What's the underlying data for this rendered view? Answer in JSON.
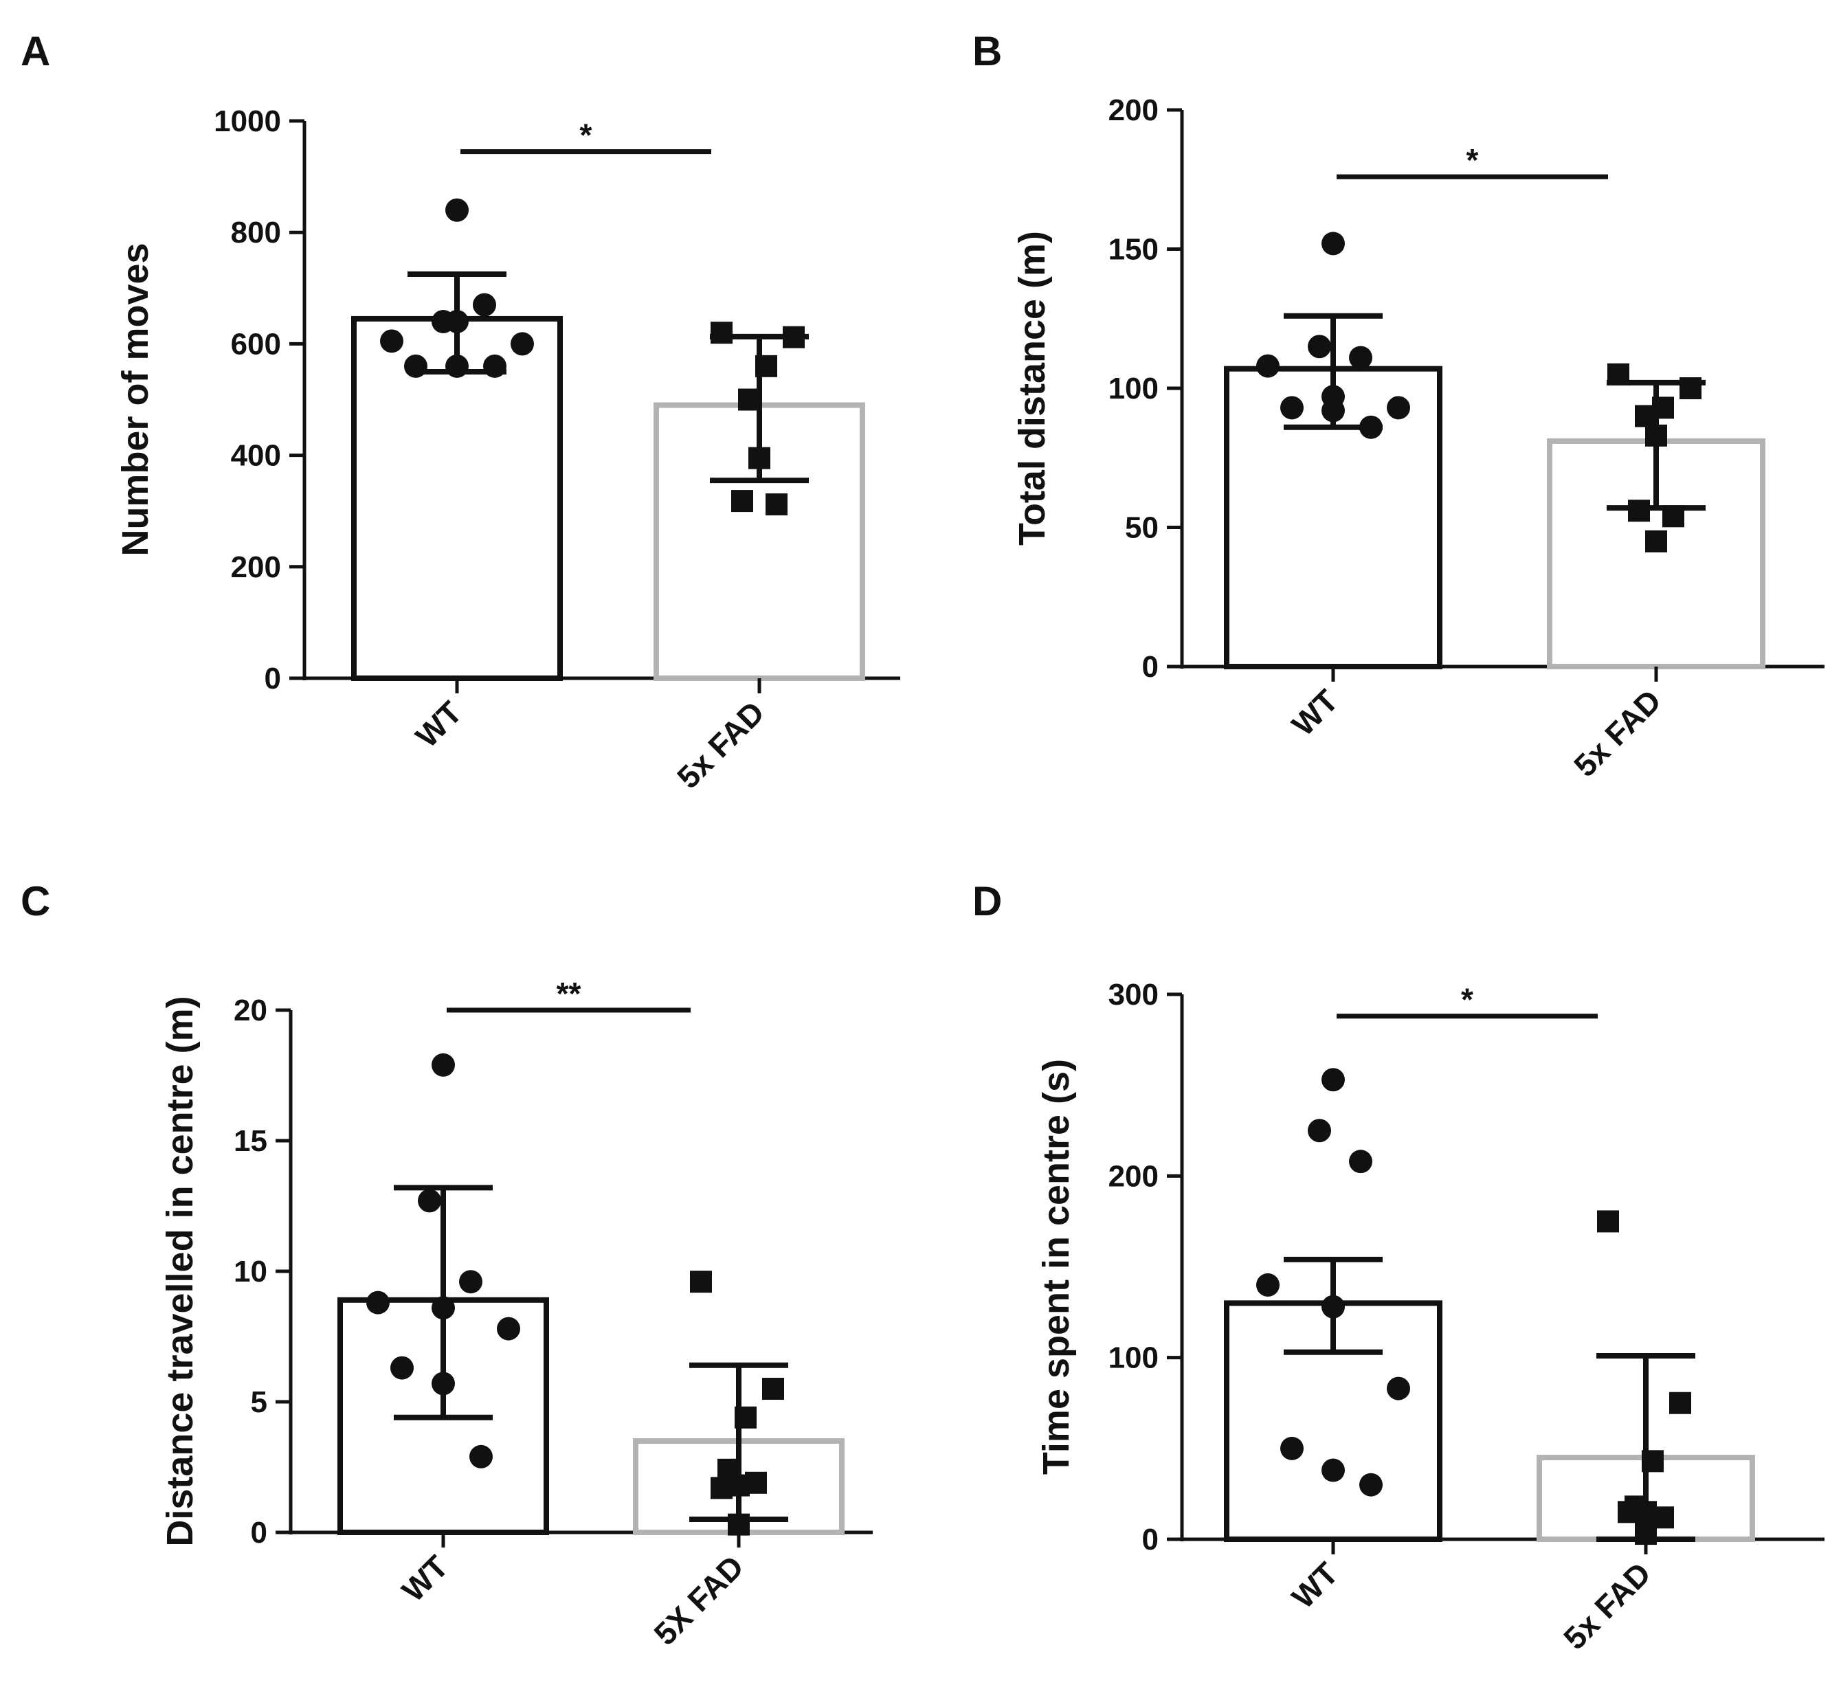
{
  "figure": {
    "colors": {
      "wt_bar": "#111111",
      "fad_bar": "#b3b3b3",
      "marker": "#111111",
      "axis": "#111111"
    }
  },
  "chart_data": [
    {
      "type": "bar",
      "panel": "A",
      "title": "",
      "xlabel": "",
      "ylabel": "Number of moves",
      "ylim": [
        0,
        1000
      ],
      "yticks": [
        0,
        200,
        400,
        600,
        800,
        1000
      ],
      "ytick_labels": [
        "0",
        "200",
        "400",
        "600",
        "800",
        "1000"
      ],
      "categories": [
        "WT",
        "5x FAD"
      ],
      "values": [
        645,
        490
      ],
      "errors": [
        [
          550,
          725
        ],
        [
          355,
          613
        ]
      ],
      "points": [
        [
          840,
          640,
          670,
          605,
          640,
          600,
          560,
          560,
          560
        ],
        [
          620,
          612,
          560,
          500,
          395,
          318,
          312
        ]
      ],
      "markers": [
        "circle",
        "square"
      ],
      "significance": {
        "label": "*",
        "from": 0,
        "to": 1,
        "y": 945
      }
    },
    {
      "type": "bar",
      "panel": "B",
      "title": "",
      "xlabel": "",
      "ylabel": "Total distance (m)",
      "ylim": [
        0,
        200
      ],
      "yticks": [
        0,
        50,
        100,
        150,
        200
      ],
      "ytick_labels": [
        "0",
        "50",
        "100",
        "150",
        "200"
      ],
      "categories": [
        "WT",
        "5x FAD"
      ],
      "values": [
        107,
        81
      ],
      "errors": [
        [
          86,
          126
        ],
        [
          57,
          102
        ]
      ],
      "points": [
        [
          152,
          115,
          111,
          108,
          97,
          93,
          93,
          92,
          86
        ],
        [
          105,
          100,
          93,
          90,
          83,
          56,
          54,
          45
        ]
      ],
      "markers": [
        "circle",
        "square"
      ],
      "significance": {
        "label": "*",
        "from": 0,
        "to": 1,
        "y": 176
      }
    },
    {
      "type": "bar",
      "panel": "C",
      "title": "",
      "xlabel": "",
      "ylabel": "Distance travelled in centre (m)",
      "ylim": [
        0,
        20
      ],
      "yticks": [
        0,
        5,
        10,
        15,
        20
      ],
      "ytick_labels": [
        "0",
        "5",
        "10",
        "15",
        "20"
      ],
      "categories": [
        "WT",
        "5X FAD"
      ],
      "values": [
        8.9,
        3.5
      ],
      "errors": [
        [
          4.4,
          13.2
        ],
        [
          0.5,
          6.4
        ]
      ],
      "points": [
        [
          17.9,
          12.7,
          9.6,
          8.8,
          8.6,
          7.8,
          6.3,
          5.7,
          2.9
        ],
        [
          9.6,
          5.5,
          4.4,
          2.4,
          1.8,
          1.7,
          1.9,
          0.3
        ]
      ],
      "markers": [
        "circle",
        "square"
      ],
      "significance": {
        "label": "**",
        "from": 0,
        "to": 1,
        "y": 20
      }
    },
    {
      "type": "bar",
      "panel": "D",
      "title": "",
      "xlabel": "",
      "ylabel": "Time spent in centre (s)",
      "ylim": [
        0,
        300
      ],
      "yticks": [
        0,
        100,
        200,
        300
      ],
      "ytick_labels": [
        "0",
        "100",
        "200",
        "300"
      ],
      "categories": [
        "WT",
        "5x FAD"
      ],
      "values": [
        130,
        45
      ],
      "errors": [
        [
          103,
          154
        ],
        [
          0,
          101
        ]
      ],
      "points": [
        [
          253,
          225,
          208,
          140,
          128,
          83,
          50,
          38,
          30
        ],
        [
          175,
          75,
          43,
          18,
          15,
          15,
          12,
          3
        ]
      ],
      "markers": [
        "circle",
        "square"
      ],
      "significance": {
        "label": "*",
        "from": 0,
        "to": 1,
        "y": 288
      }
    }
  ]
}
